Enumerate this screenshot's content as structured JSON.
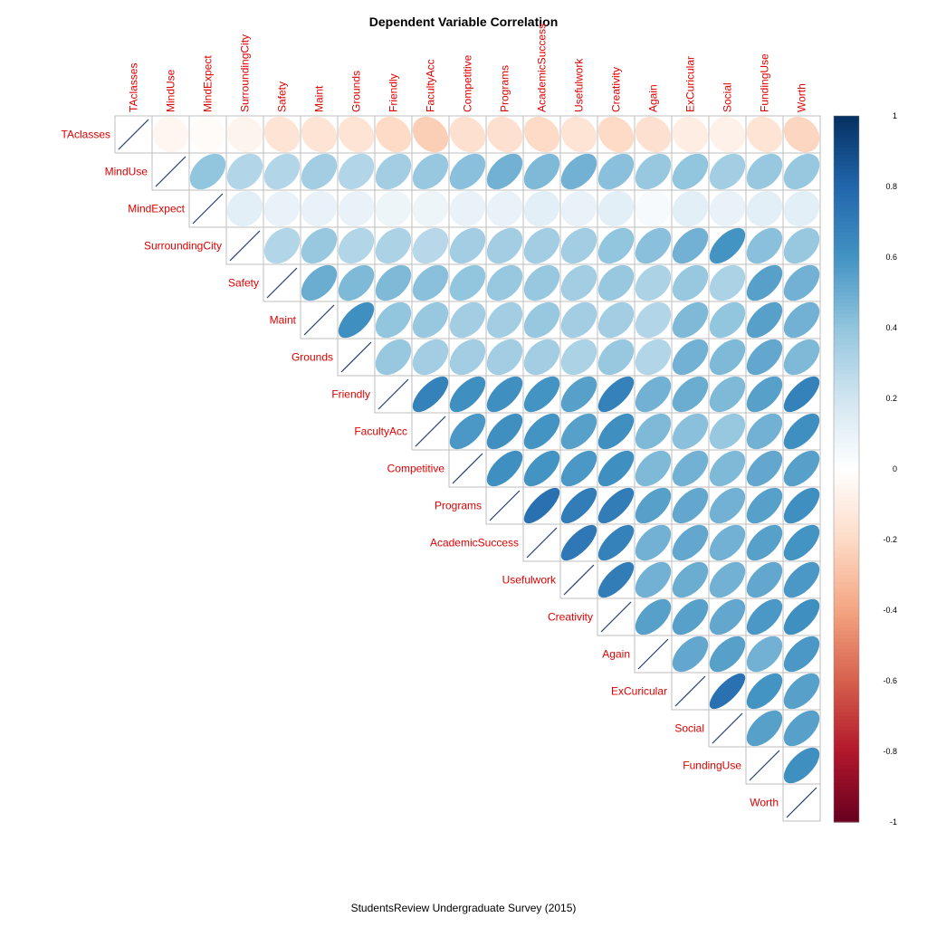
{
  "chart_data": {
    "type": "heatmap",
    "subtype": "correlation-matrix-upper-ellipse",
    "title": "Dependent Variable Correlation",
    "caption": "StudentsReview Undergraduate Survey (2015)",
    "variables": [
      "TAclasses",
      "MindUse",
      "MindExpect",
      "SurroundingCity",
      "Safety",
      "Maint",
      "Grounds",
      "Friendly",
      "FacultyAcc",
      "Competitive",
      "Programs",
      "AcademicSuccess",
      "Usefulwork",
      "Creativity",
      "Again",
      "ExCuricular",
      "Social",
      "FundingUse",
      "Worth"
    ],
    "colorbar": {
      "min": -1,
      "max": 1,
      "ticks": [
        "1",
        "0.8",
        "0.6",
        "0.4",
        "0.2",
        "0",
        "-0.2",
        "-0.4",
        "-0.6",
        "-0.8",
        "-1"
      ]
    },
    "label_color": "#e00000",
    "matrix": [
      [
        1.0,
        -0.05,
        -0.02,
        -0.06,
        -0.15,
        -0.15,
        -0.15,
        -0.2,
        -0.25,
        -0.17,
        -0.17,
        -0.2,
        -0.15,
        -0.2,
        -0.17,
        -0.1,
        -0.08,
        -0.15,
        -0.22
      ],
      [
        -0.05,
        1.0,
        0.4,
        0.3,
        0.3,
        0.35,
        0.3,
        0.35,
        0.38,
        0.42,
        0.48,
        0.45,
        0.48,
        0.42,
        0.38,
        0.4,
        0.35,
        0.38,
        0.38
      ],
      [
        -0.02,
        0.4,
        1.0,
        0.12,
        0.1,
        0.1,
        0.1,
        0.08,
        0.08,
        0.1,
        0.1,
        0.12,
        0.1,
        0.12,
        0.04,
        0.12,
        0.1,
        0.12,
        0.12
      ],
      [
        -0.06,
        0.3,
        0.12,
        1.0,
        0.3,
        0.38,
        0.3,
        0.32,
        0.28,
        0.35,
        0.35,
        0.35,
        0.35,
        0.4,
        0.42,
        0.48,
        0.6,
        0.42,
        0.38
      ],
      [
        -0.15,
        0.3,
        0.1,
        0.3,
        1.0,
        0.5,
        0.45,
        0.45,
        0.42,
        0.4,
        0.38,
        0.38,
        0.35,
        0.38,
        0.32,
        0.38,
        0.32,
        0.55,
        0.48
      ],
      [
        -0.15,
        0.35,
        0.1,
        0.38,
        0.5,
        1.0,
        0.62,
        0.4,
        0.38,
        0.35,
        0.35,
        0.38,
        0.35,
        0.35,
        0.3,
        0.45,
        0.4,
        0.55,
        0.48
      ],
      [
        -0.15,
        0.3,
        0.1,
        0.3,
        0.45,
        0.62,
        1.0,
        0.38,
        0.35,
        0.35,
        0.35,
        0.35,
        0.32,
        0.38,
        0.3,
        0.48,
        0.45,
        0.52,
        0.45
      ],
      [
        -0.2,
        0.35,
        0.08,
        0.32,
        0.45,
        0.4,
        0.38,
        1.0,
        0.68,
        0.62,
        0.62,
        0.6,
        0.55,
        0.68,
        0.48,
        0.5,
        0.45,
        0.55,
        0.68
      ],
      [
        -0.25,
        0.38,
        0.08,
        0.28,
        0.42,
        0.38,
        0.35,
        0.68,
        1.0,
        0.58,
        0.62,
        0.6,
        0.55,
        0.62,
        0.45,
        0.42,
        0.38,
        0.48,
        0.62
      ],
      [
        -0.17,
        0.42,
        0.1,
        0.35,
        0.4,
        0.35,
        0.35,
        0.62,
        0.58,
        1.0,
        0.62,
        0.6,
        0.58,
        0.62,
        0.45,
        0.48,
        0.45,
        0.52,
        0.55
      ],
      [
        -0.17,
        0.48,
        0.1,
        0.35,
        0.38,
        0.35,
        0.35,
        0.62,
        0.62,
        0.62,
        1.0,
        0.75,
        0.7,
        0.7,
        0.55,
        0.52,
        0.48,
        0.55,
        0.62
      ],
      [
        -0.2,
        0.45,
        0.12,
        0.35,
        0.38,
        0.38,
        0.35,
        0.6,
        0.6,
        0.6,
        0.75,
        1.0,
        0.72,
        0.68,
        0.48,
        0.52,
        0.48,
        0.55,
        0.6
      ],
      [
        -0.15,
        0.48,
        0.1,
        0.35,
        0.35,
        0.35,
        0.32,
        0.55,
        0.55,
        0.58,
        0.7,
        0.72,
        1.0,
        0.7,
        0.48,
        0.5,
        0.48,
        0.52,
        0.58
      ],
      [
        -0.2,
        0.42,
        0.12,
        0.4,
        0.38,
        0.35,
        0.38,
        0.68,
        0.62,
        0.62,
        0.7,
        0.68,
        0.7,
        1.0,
        0.55,
        0.55,
        0.52,
        0.58,
        0.62
      ],
      [
        -0.17,
        0.38,
        0.04,
        0.42,
        0.32,
        0.3,
        0.3,
        0.48,
        0.45,
        0.45,
        0.55,
        0.48,
        0.48,
        0.55,
        1.0,
        0.52,
        0.55,
        0.48,
        0.58
      ],
      [
        -0.1,
        0.4,
        0.12,
        0.48,
        0.38,
        0.45,
        0.48,
        0.5,
        0.42,
        0.48,
        0.52,
        0.52,
        0.5,
        0.55,
        0.52,
        1.0,
        0.75,
        0.6,
        0.55
      ],
      [
        -0.08,
        0.35,
        0.1,
        0.6,
        0.32,
        0.4,
        0.45,
        0.45,
        0.38,
        0.45,
        0.48,
        0.48,
        0.48,
        0.52,
        0.55,
        0.75,
        1.0,
        0.55,
        0.55
      ],
      [
        -0.15,
        0.38,
        0.12,
        0.42,
        0.55,
        0.55,
        0.52,
        0.55,
        0.48,
        0.52,
        0.55,
        0.55,
        0.52,
        0.58,
        0.48,
        0.6,
        0.55,
        1.0,
        0.62
      ],
      [
        -0.22,
        0.38,
        0.12,
        0.38,
        0.48,
        0.48,
        0.45,
        0.68,
        0.62,
        0.55,
        0.62,
        0.6,
        0.58,
        0.62,
        0.58,
        0.55,
        0.55,
        0.62,
        1.0
      ]
    ]
  }
}
